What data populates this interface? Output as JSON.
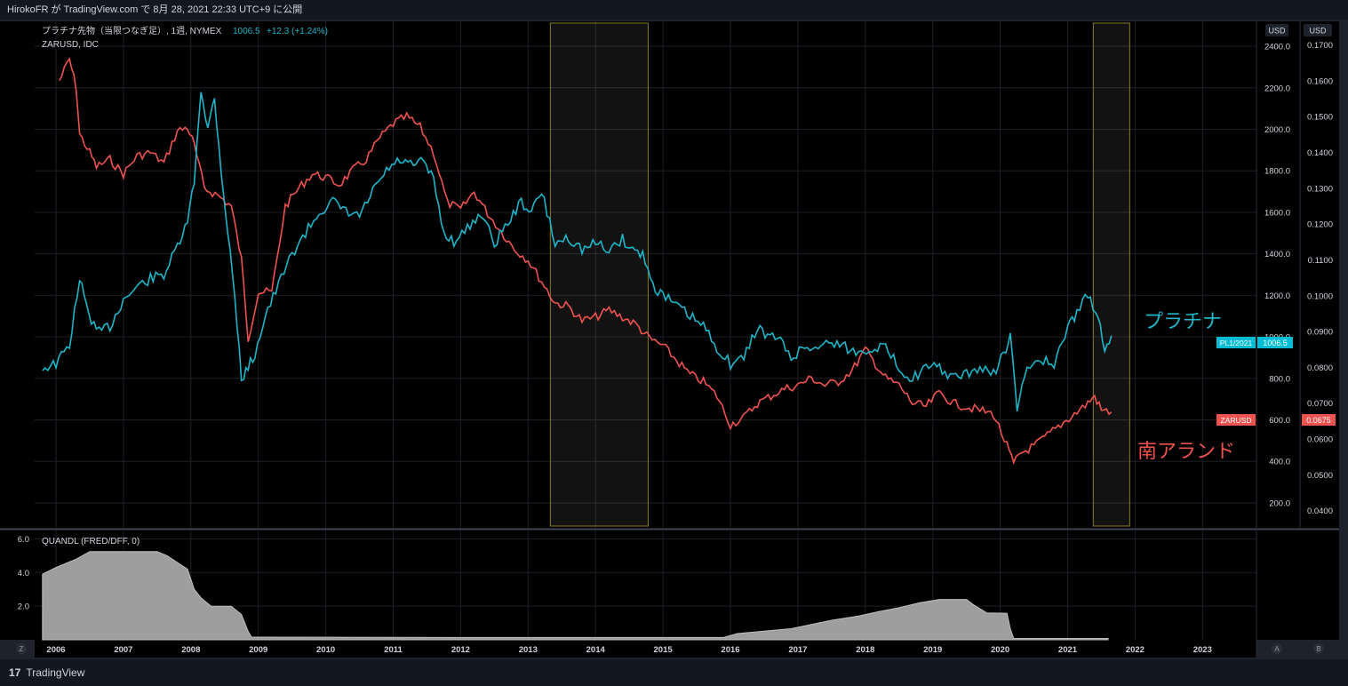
{
  "topbar": {
    "text": "HirokoFR が TradingView.com で 8月 28, 2021 22:33 UTC+9 に公開"
  },
  "footer": {
    "logo_mark": "17",
    "brand": "TradingView"
  },
  "main_pane": {
    "legend1_name": "プラチナ先物（当限つなぎ足）, 1週, NYMEX",
    "legend1_value": "1006.5",
    "legend1_change": "+12.3 (+1.24%)",
    "legend2_name": "ZARUSD, IDC",
    "label_platinum": "プラチナ",
    "label_zar": "南アランド",
    "scale_left_unit": "USD",
    "scale_right_unit": "USD",
    "tag_platinum_name": "PL1/2021",
    "tag_platinum_value": "1006.5",
    "tag_zar_name": "ZARUSD",
    "tag_zar_value": "0.0675"
  },
  "lower_pane": {
    "legend": "QUANDL (FRED/DFF, 0)"
  },
  "corner_buttons": {
    "z": "Z",
    "a": "A",
    "b": "B"
  },
  "colors": {
    "platinum": "#1eb5c9",
    "zar": "#ef5350",
    "dff_fill": "#9e9e9e",
    "background": "#000000",
    "grid": "#1c1f26",
    "highlight_border": "#8a7a2a"
  },
  "chart_data": [
    {
      "type": "line",
      "title": "プラチナ先物（当限つなぎ足）, 1週, NYMEX",
      "x_tick_labels": [
        "2006",
        "2007",
        "2008",
        "2009",
        "2010",
        "2011",
        "2012",
        "2013",
        "2014",
        "2015",
        "2016",
        "2017",
        "2018",
        "2019",
        "2020",
        "2021",
        "2022",
        "2023"
      ],
      "ylim_left": [
        80,
        2520
      ],
      "ylim_right": [
        0.0352,
        0.1766
      ],
      "y_ticks_left": [
        "2400.0",
        "2200.0",
        "2000.0",
        "1800.0",
        "1600.0",
        "1400.0",
        "1200.0",
        "1000.0",
        "800.0",
        "600.0",
        "400.0",
        "200.0"
      ],
      "y_ticks_right": [
        "0.1700",
        "0.1600",
        "0.1500",
        "0.1400",
        "0.1300",
        "0.1200",
        "0.1100",
        "0.1000",
        "0.0900",
        "0.0800",
        "0.0700",
        "0.0600",
        "0.0500",
        "0.0400"
      ],
      "highlight_ranges": [
        [
          2013.33,
          2014.78
        ],
        [
          2021.38,
          2021.92
        ]
      ],
      "grid": true,
      "series": [
        {
          "name": "プラチナ",
          "axis": "left",
          "x": [
            2005.8,
            2006.0,
            2006.2,
            2006.35,
            2006.45,
            2006.6,
            2006.8,
            2007.0,
            2007.2,
            2007.4,
            2007.6,
            2007.8,
            2007.95,
            2008.05,
            2008.15,
            2008.25,
            2008.35,
            2008.45,
            2008.55,
            2008.65,
            2008.75,
            2008.85,
            2008.95,
            2009.1,
            2009.3,
            2009.5,
            2009.7,
            2009.9,
            2010.1,
            2010.3,
            2010.5,
            2010.7,
            2010.9,
            2011.1,
            2011.3,
            2011.45,
            2011.6,
            2011.75,
            2011.9,
            2012.1,
            2012.3,
            2012.5,
            2012.7,
            2012.9,
            2013.05,
            2013.2,
            2013.4,
            2013.6,
            2013.8,
            2014.0,
            2014.2,
            2014.4,
            2014.55,
            2014.7,
            2014.85,
            2015.0,
            2015.2,
            2015.4,
            2015.6,
            2015.8,
            2016.0,
            2016.2,
            2016.4,
            2016.55,
            2016.7,
            2016.9,
            2017.1,
            2017.3,
            2017.5,
            2017.7,
            2017.9,
            2018.1,
            2018.3,
            2018.5,
            2018.7,
            2018.9,
            2019.1,
            2019.3,
            2019.5,
            2019.7,
            2019.9,
            2020.05,
            2020.15,
            2020.25,
            2020.4,
            2020.6,
            2020.8,
            2021.0,
            2021.1,
            2021.3,
            2021.45,
            2021.55,
            2021.65
          ],
          "y": [
            850,
            870,
            960,
            1280,
            1150,
            1020,
            1050,
            1180,
            1240,
            1280,
            1300,
            1430,
            1550,
            1750,
            2200,
            2000,
            2150,
            1800,
            1500,
            1200,
            800,
            850,
            920,
            1100,
            1250,
            1400,
            1500,
            1600,
            1650,
            1600,
            1580,
            1700,
            1800,
            1850,
            1820,
            1850,
            1750,
            1500,
            1460,
            1520,
            1600,
            1450,
            1550,
            1650,
            1600,
            1700,
            1450,
            1480,
            1420,
            1450,
            1420,
            1470,
            1420,
            1400,
            1250,
            1200,
            1150,
            1100,
            1050,
            950,
            870,
            900,
            1050,
            1000,
            1000,
            900,
            950,
            950,
            980,
            950,
            920,
            950,
            950,
            850,
            800,
            850,
            850,
            800,
            820,
            850,
            820,
            920,
            1000,
            650,
            850,
            900,
            850,
            1050,
            1100,
            1200,
            1100,
            950,
            1006.5
          ]
        },
        {
          "name": "南アランド",
          "axis": "right",
          "x": [
            2006.05,
            2006.2,
            2006.3,
            2006.35,
            2006.5,
            2006.6,
            2006.8,
            2007.0,
            2007.2,
            2007.4,
            2007.6,
            2007.8,
            2007.95,
            2008.05,
            2008.2,
            2008.4,
            2008.6,
            2008.75,
            2008.85,
            2009.0,
            2009.2,
            2009.4,
            2009.6,
            2009.8,
            2010.0,
            2010.2,
            2010.4,
            2010.6,
            2010.8,
            2011.0,
            2011.2,
            2011.4,
            2011.6,
            2011.8,
            2012.0,
            2012.2,
            2012.4,
            2012.6,
            2012.8,
            2013.0,
            2013.2,
            2013.4,
            2013.6,
            2013.8,
            2014.0,
            2014.2,
            2014.4,
            2014.6,
            2014.8,
            2015.0,
            2015.2,
            2015.4,
            2015.6,
            2015.8,
            2016.0,
            2016.2,
            2016.4,
            2016.6,
            2016.8,
            2017.0,
            2017.2,
            2017.4,
            2017.6,
            2017.8,
            2018.0,
            2018.15,
            2018.3,
            2018.5,
            2018.7,
            2018.9,
            2019.1,
            2019.3,
            2019.5,
            2019.7,
            2019.9,
            2020.1,
            2020.2,
            2020.3,
            2020.5,
            2020.7,
            2020.9,
            2021.1,
            2021.3,
            2021.4,
            2021.5,
            2021.65
          ],
          "y": [
            0.16,
            0.166,
            0.158,
            0.145,
            0.14,
            0.136,
            0.138,
            0.134,
            0.139,
            0.14,
            0.137,
            0.146,
            0.147,
            0.142,
            0.13,
            0.128,
            0.125,
            0.11,
            0.088,
            0.101,
            0.101,
            0.125,
            0.13,
            0.134,
            0.133,
            0.131,
            0.135,
            0.138,
            0.144,
            0.148,
            0.15,
            0.147,
            0.14,
            0.126,
            0.124,
            0.129,
            0.123,
            0.118,
            0.113,
            0.11,
            0.104,
            0.098,
            0.097,
            0.093,
            0.094,
            0.096,
            0.094,
            0.092,
            0.088,
            0.086,
            0.082,
            0.078,
            0.076,
            0.072,
            0.064,
            0.066,
            0.07,
            0.072,
            0.074,
            0.075,
            0.077,
            0.075,
            0.076,
            0.079,
            0.085,
            0.081,
            0.077,
            0.075,
            0.07,
            0.069,
            0.073,
            0.07,
            0.069,
            0.068,
            0.067,
            0.058,
            0.053,
            0.056,
            0.058,
            0.061,
            0.064,
            0.067,
            0.07,
            0.072,
            0.068,
            0.0675
          ]
        }
      ]
    },
    {
      "type": "area",
      "title": "QUANDL (FRED/DFF, 0)",
      "ylim": [
        0,
        6.5
      ],
      "y_ticks": [
        "6.0",
        "4.0",
        "2.0"
      ],
      "series": [
        {
          "name": "QUANDL (FRED/DFF, 0)",
          "x": [
            2005.8,
            2006.0,
            2006.3,
            2006.5,
            2007.0,
            2007.5,
            2007.65,
            2007.8,
            2007.95,
            2008.05,
            2008.15,
            2008.3,
            2008.45,
            2008.6,
            2008.75,
            2008.85,
            2008.9,
            2009.0,
            2012.0,
            2015.9,
            2016.1,
            2016.9,
            2017.2,
            2017.5,
            2017.9,
            2018.2,
            2018.5,
            2018.8,
            2019.1,
            2019.5,
            2019.6,
            2019.8,
            2020.1,
            2020.15,
            2020.2,
            2021.0,
            2021.6
          ],
          "y": [
            3.9,
            4.3,
            4.8,
            5.25,
            5.25,
            5.25,
            5.0,
            4.6,
            4.2,
            3.0,
            2.5,
            2.0,
            2.0,
            2.0,
            1.5,
            0.5,
            0.16,
            0.16,
            0.14,
            0.14,
            0.37,
            0.66,
            0.91,
            1.16,
            1.41,
            1.68,
            1.91,
            2.2,
            2.4,
            2.4,
            2.1,
            1.6,
            1.58,
            0.65,
            0.08,
            0.08,
            0.08
          ]
        }
      ]
    }
  ]
}
